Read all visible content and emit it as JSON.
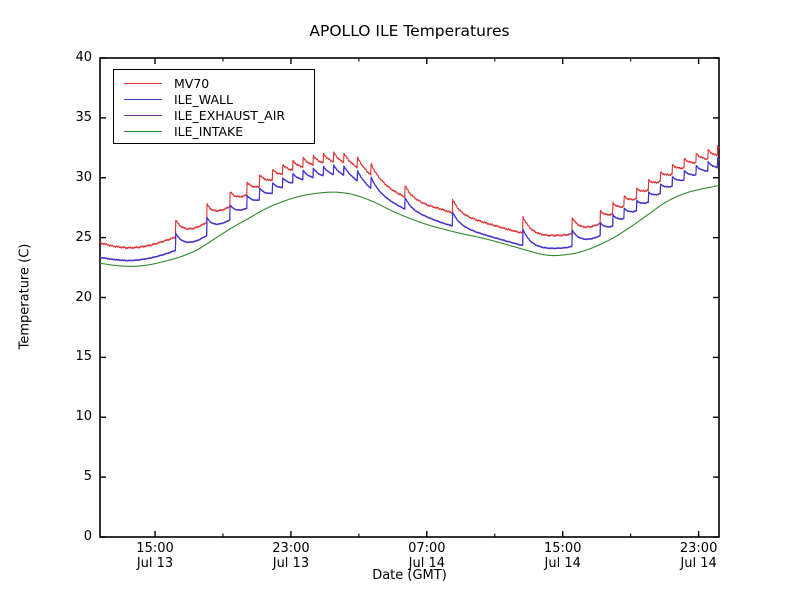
{
  "chart_data": {
    "type": "line",
    "title": "APOLLO ILE Temperatures",
    "xlabel": "Date (GMT)",
    "ylabel": "Temperature (C)",
    "background": "#ffffff",
    "grid": false,
    "legend_position": "upper left",
    "x_unit_hours_since": "Jul 13 12:00 GMT",
    "xlim": [
      -0.24,
      36.2
    ],
    "ylim": [
      0,
      40
    ],
    "y_ticks": [
      0,
      5,
      10,
      15,
      20,
      25,
      30,
      35,
      40
    ],
    "x_ticks": [
      {
        "t": 3,
        "lines": [
          "15:00",
          "Jul 13"
        ]
      },
      {
        "t": 11,
        "lines": [
          "23:00",
          "Jul 13"
        ]
      },
      {
        "t": 19,
        "lines": [
          "07:00",
          "Jul 14"
        ]
      },
      {
        "t": 27,
        "lines": [
          "15:00",
          "Jul 14"
        ]
      },
      {
        "t": 35,
        "lines": [
          "23:00",
          "Jul 14"
        ]
      }
    ],
    "x_minor_ticks": [
      7,
      15,
      23,
      31
    ],
    "spike_decay_hours": 0.45,
    "series": [
      {
        "name": "MV70",
        "color": "#e03030",
        "noise": 0.07,
        "baseline": [
          [
            -0.24,
            24.55
          ],
          [
            0.5,
            24.3
          ],
          [
            1.5,
            24.15
          ],
          [
            2.5,
            24.3
          ],
          [
            3.5,
            24.7
          ],
          [
            4.5,
            25.2
          ],
          [
            5.5,
            25.8
          ],
          [
            6.5,
            26.7
          ],
          [
            7.5,
            27.6
          ],
          [
            8.5,
            28.5
          ],
          [
            9.5,
            29.3
          ],
          [
            10.5,
            30.0
          ],
          [
            11.5,
            30.55
          ],
          [
            12.5,
            30.85
          ],
          [
            13.5,
            31.05
          ],
          [
            14.3,
            30.95
          ],
          [
            15,
            30.6
          ],
          [
            16,
            29.8
          ],
          [
            17,
            28.9
          ],
          [
            18,
            28.2
          ],
          [
            19,
            27.7
          ],
          [
            20,
            27.3
          ],
          [
            21,
            26.8
          ],
          [
            22,
            26.4
          ],
          [
            23,
            26.0
          ],
          [
            24,
            25.6
          ],
          [
            25,
            25.3
          ],
          [
            25.8,
            25.15
          ],
          [
            26.5,
            25.15
          ],
          [
            27.3,
            25.25
          ],
          [
            28,
            25.5
          ],
          [
            29,
            26.0
          ],
          [
            30,
            26.8
          ],
          [
            31,
            27.7
          ],
          [
            32,
            28.7
          ],
          [
            33,
            29.7
          ],
          [
            34,
            30.5
          ],
          [
            35,
            31.1
          ],
          [
            35.7,
            31.4
          ],
          [
            36.2,
            31.6
          ]
        ],
        "spikes": [
          [
            4.2,
            1.5
          ],
          [
            6.05,
            1.5
          ],
          [
            7.4,
            1.3
          ],
          [
            8.4,
            1.1
          ],
          [
            9.15,
            1.0
          ],
          [
            9.9,
            0.9
          ],
          [
            10.5,
            0.85
          ],
          [
            11.1,
            0.8
          ],
          [
            11.7,
            0.8
          ],
          [
            12.3,
            0.8
          ],
          [
            12.9,
            0.8
          ],
          [
            13.5,
            0.8
          ],
          [
            14.1,
            0.8
          ],
          [
            14.9,
            0.9
          ],
          [
            15.7,
            1.0
          ],
          [
            17.7,
            1.0
          ],
          [
            20.5,
            1.2
          ],
          [
            24.65,
            1.4
          ],
          [
            27.55,
            1.4
          ],
          [
            29.2,
            1.1
          ],
          [
            29.95,
            0.95
          ],
          [
            30.6,
            0.9
          ],
          [
            31.35,
            0.85
          ],
          [
            32.05,
            0.85
          ],
          [
            32.75,
            0.8
          ],
          [
            33.45,
            0.8
          ],
          [
            34.15,
            0.8
          ],
          [
            34.85,
            0.8
          ],
          [
            35.55,
            0.8
          ],
          [
            36.12,
            0.8
          ]
        ]
      },
      {
        "name": "ILE_WALL",
        "color": "#3535d8",
        "noise": 0.03,
        "baseline": [
          [
            -0.24,
            23.35
          ],
          [
            0.5,
            23.2
          ],
          [
            1.5,
            23.1
          ],
          [
            2.5,
            23.25
          ],
          [
            3.5,
            23.6
          ],
          [
            4.5,
            24.1
          ],
          [
            5.5,
            24.7
          ],
          [
            6.5,
            25.6
          ],
          [
            7.5,
            26.5
          ],
          [
            8.5,
            27.4
          ],
          [
            9.5,
            28.2
          ],
          [
            10.5,
            28.9
          ],
          [
            11.5,
            29.5
          ],
          [
            12.5,
            29.8
          ],
          [
            13.5,
            30.0
          ],
          [
            14.3,
            29.9
          ],
          [
            15,
            29.5
          ],
          [
            16,
            28.7
          ],
          [
            17,
            27.9
          ],
          [
            18,
            27.2
          ],
          [
            19,
            26.7
          ],
          [
            20,
            26.2
          ],
          [
            21,
            25.8
          ],
          [
            22,
            25.4
          ],
          [
            23,
            25.0
          ],
          [
            24,
            24.6
          ],
          [
            25,
            24.25
          ],
          [
            25.8,
            24.1
          ],
          [
            26.5,
            24.1
          ],
          [
            27.3,
            24.2
          ],
          [
            28,
            24.5
          ],
          [
            29,
            25.0
          ],
          [
            30,
            25.8
          ],
          [
            31,
            26.7
          ],
          [
            32,
            27.7
          ],
          [
            33,
            28.7
          ],
          [
            34,
            29.5
          ],
          [
            35,
            30.1
          ],
          [
            35.7,
            30.4
          ],
          [
            36.2,
            30.6
          ]
        ],
        "spikes": [
          [
            4.2,
            1.5
          ],
          [
            6.05,
            1.5
          ],
          [
            7.4,
            1.3
          ],
          [
            8.4,
            1.1
          ],
          [
            9.15,
            1.0
          ],
          [
            9.9,
            0.9
          ],
          [
            10.5,
            0.85
          ],
          [
            11.1,
            0.8
          ],
          [
            11.7,
            0.8
          ],
          [
            12.3,
            0.8
          ],
          [
            12.9,
            0.8
          ],
          [
            13.5,
            0.8
          ],
          [
            14.1,
            0.8
          ],
          [
            14.9,
            0.9
          ],
          [
            15.7,
            1.0
          ],
          [
            17.7,
            1.0
          ],
          [
            20.5,
            1.2
          ],
          [
            24.65,
            1.4
          ],
          [
            27.55,
            1.4
          ],
          [
            29.2,
            1.1
          ],
          [
            29.95,
            0.95
          ],
          [
            30.6,
            0.9
          ],
          [
            31.35,
            0.85
          ],
          [
            32.05,
            0.85
          ],
          [
            32.75,
            0.8
          ],
          [
            33.45,
            0.8
          ],
          [
            34.15,
            0.8
          ],
          [
            34.85,
            0.8
          ],
          [
            35.55,
            0.8
          ],
          [
            36.12,
            0.8
          ]
        ]
      },
      {
        "name": "ILE_EXHAUST_AIR",
        "color": "#7b2f8f",
        "noise": 0.03,
        "note": "coincides with ILE_WALL and is hidden beneath it in the plot",
        "baseline": [
          [
            -0.24,
            23.32
          ],
          [
            0.5,
            23.17
          ],
          [
            1.5,
            23.07
          ],
          [
            2.5,
            23.22
          ],
          [
            3.5,
            23.57
          ],
          [
            4.5,
            24.07
          ],
          [
            5.5,
            24.67
          ],
          [
            6.5,
            25.57
          ],
          [
            7.5,
            26.47
          ],
          [
            8.5,
            27.37
          ],
          [
            9.5,
            28.17
          ],
          [
            10.5,
            28.87
          ],
          [
            11.5,
            29.47
          ],
          [
            12.5,
            29.77
          ],
          [
            13.5,
            29.97
          ],
          [
            14.3,
            29.87
          ],
          [
            15,
            29.47
          ],
          [
            16,
            28.67
          ],
          [
            17,
            27.87
          ],
          [
            18,
            27.17
          ],
          [
            19,
            26.67
          ],
          [
            20,
            26.17
          ],
          [
            21,
            25.77
          ],
          [
            22,
            25.37
          ],
          [
            23,
            24.97
          ],
          [
            24,
            24.57
          ],
          [
            25,
            24.22
          ],
          [
            25.8,
            24.07
          ],
          [
            26.5,
            24.07
          ],
          [
            27.3,
            24.17
          ],
          [
            28,
            24.47
          ],
          [
            29,
            24.97
          ],
          [
            30,
            25.77
          ],
          [
            31,
            26.67
          ],
          [
            32,
            27.67
          ],
          [
            33,
            28.67
          ],
          [
            34,
            29.47
          ],
          [
            35,
            30.07
          ],
          [
            35.7,
            30.37
          ],
          [
            36.2,
            30.57
          ]
        ],
        "spikes": [
          [
            4.2,
            1.5
          ],
          [
            6.05,
            1.5
          ],
          [
            7.4,
            1.3
          ],
          [
            8.4,
            1.1
          ],
          [
            9.15,
            1.0
          ],
          [
            9.9,
            0.9
          ],
          [
            10.5,
            0.85
          ],
          [
            11.1,
            0.8
          ],
          [
            11.7,
            0.8
          ],
          [
            12.3,
            0.8
          ],
          [
            12.9,
            0.8
          ],
          [
            13.5,
            0.8
          ],
          [
            14.1,
            0.8
          ],
          [
            14.9,
            0.9
          ],
          [
            15.7,
            1.0
          ],
          [
            17.7,
            1.0
          ],
          [
            20.5,
            1.2
          ],
          [
            24.65,
            1.4
          ],
          [
            27.55,
            1.4
          ],
          [
            29.2,
            1.1
          ],
          [
            29.95,
            0.95
          ],
          [
            30.6,
            0.9
          ],
          [
            31.35,
            0.85
          ],
          [
            32.05,
            0.85
          ],
          [
            32.75,
            0.8
          ],
          [
            33.45,
            0.8
          ],
          [
            34.15,
            0.8
          ],
          [
            34.85,
            0.8
          ],
          [
            35.55,
            0.8
          ],
          [
            36.12,
            0.8
          ]
        ]
      },
      {
        "name": "ILE_INTAKE",
        "color": "#2e8b2e",
        "noise": 0.0,
        "baseline": [
          [
            -0.24,
            22.85
          ],
          [
            0.5,
            22.7
          ],
          [
            1.5,
            22.6
          ],
          [
            2.5,
            22.7
          ],
          [
            3.5,
            23.0
          ],
          [
            4.5,
            23.4
          ],
          [
            5.5,
            24.0
          ],
          [
            6.5,
            24.9
          ],
          [
            7.5,
            25.8
          ],
          [
            8.5,
            26.6
          ],
          [
            9.5,
            27.4
          ],
          [
            10.5,
            28.0
          ],
          [
            11.5,
            28.45
          ],
          [
            12.5,
            28.7
          ],
          [
            13.5,
            28.8
          ],
          [
            14.3,
            28.7
          ],
          [
            15,
            28.45
          ],
          [
            16,
            27.9
          ],
          [
            17,
            27.2
          ],
          [
            18,
            26.6
          ],
          [
            19,
            26.1
          ],
          [
            20,
            25.7
          ],
          [
            21,
            25.35
          ],
          [
            22,
            25.05
          ],
          [
            23,
            24.7
          ],
          [
            24,
            24.3
          ],
          [
            25,
            23.9
          ],
          [
            25.8,
            23.6
          ],
          [
            26.5,
            23.5
          ],
          [
            27.3,
            23.6
          ],
          [
            28,
            23.8
          ],
          [
            29,
            24.3
          ],
          [
            30,
            25.0
          ],
          [
            31,
            25.9
          ],
          [
            32,
            26.9
          ],
          [
            33,
            27.9
          ],
          [
            34,
            28.6
          ],
          [
            35,
            29.0
          ],
          [
            35.7,
            29.2
          ],
          [
            36.2,
            29.35
          ]
        ],
        "spikes": []
      }
    ]
  }
}
